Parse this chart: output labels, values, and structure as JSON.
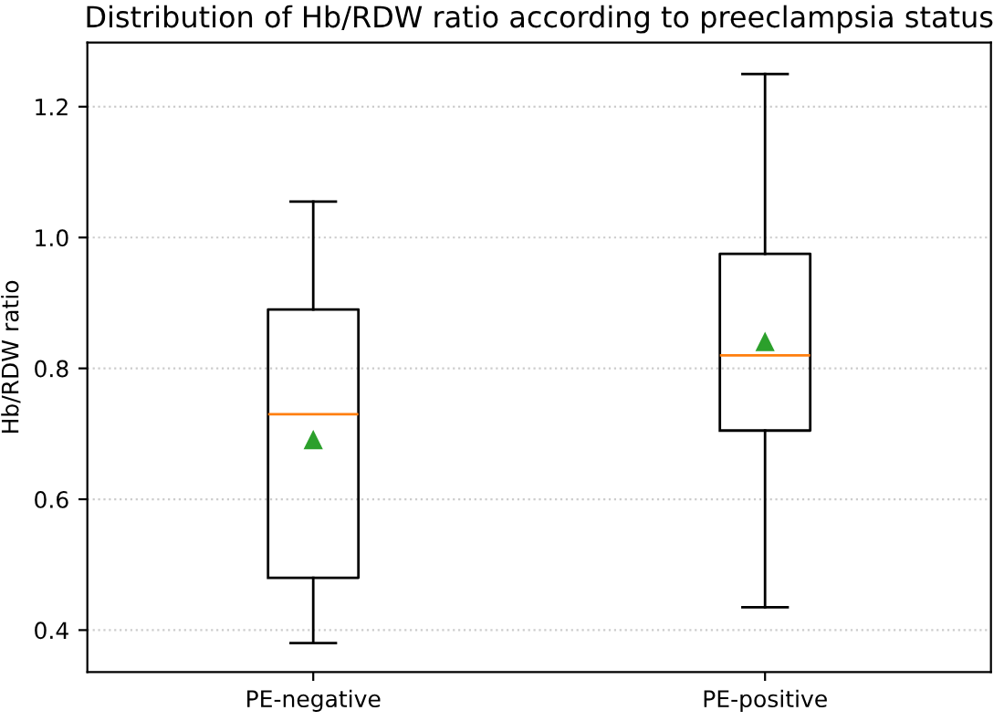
{
  "chart_data": {
    "type": "box",
    "title": "Distribution of Hb/RDW ratio according to preeclampsia status",
    "ylabel": "Hb/RDW ratio",
    "categories": [
      "PE-negative",
      "PE-positive"
    ],
    "boxes": [
      {
        "low": 0.38,
        "q1": 0.48,
        "median": 0.73,
        "q3": 0.89,
        "high": 1.055,
        "mean": 0.69
      },
      {
        "low": 0.435,
        "q1": 0.705,
        "median": 0.82,
        "q3": 0.975,
        "high": 1.25,
        "mean": 0.84
      }
    ],
    "ylim": [
      0.336,
      1.298
    ],
    "yticks": [
      0.4,
      0.6,
      0.8,
      {
        "value": 1.0,
        "label": "1.0"
      },
      1.2
    ],
    "grid": "y"
  }
}
